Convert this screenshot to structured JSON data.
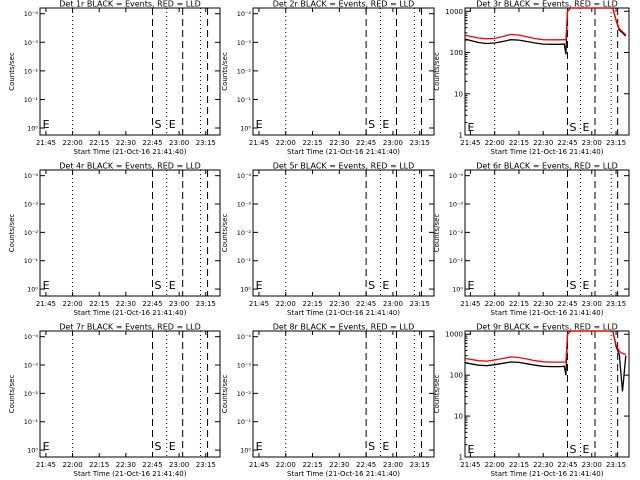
{
  "figure": {
    "xlabel": "Start Time (21-Oct-16 21:41:40)",
    "ylabel": "Counts/sec",
    "x_tick_labels": [
      "21:45",
      "22:00",
      "22:15",
      "22:30",
      "22:45",
      "23:00",
      "23:15"
    ],
    "flat_y_tick_labels": [
      "10⁻⁴",
      "10⁻³",
      "10⁻²",
      "10⁻¹",
      "10⁰"
    ],
    "log_y_tick_labels": [
      "1000",
      "100",
      "10",
      "1"
    ],
    "colors": {
      "events": "#000000",
      "lld": "#ff0000",
      "axes": "#000000",
      "background": "#ffffff"
    }
  },
  "chart_data": [
    {
      "type": "line",
      "title": "Det 1r BLACK = Events, RED = LLD",
      "x_range": [
        "21:41:40",
        "23:23:00"
      ],
      "y_scale": "log",
      "y_range": [
        0.8,
        10000
      ],
      "annotations": [
        {
          "text": "E",
          "x": "21:42"
        },
        {
          "text": "S",
          "x": "22:45"
        },
        {
          "text": "E",
          "x": "22:53"
        }
      ],
      "series": [
        {
          "values": []
        },
        {
          "values": []
        }
      ]
    },
    {
      "type": "line",
      "title": "Det 2r BLACK = Events, RED = LLD",
      "x_range": [
        "21:41:40",
        "23:23:00"
      ],
      "y_scale": "log",
      "y_range": [
        0.8,
        10000
      ],
      "annotations": [
        {
          "text": "E",
          "x": "21:42"
        },
        {
          "text": "S",
          "x": "22:45"
        },
        {
          "text": "E",
          "x": "22:53"
        }
      ],
      "series": [
        {
          "values": []
        },
        {
          "values": []
        }
      ]
    },
    {
      "type": "line",
      "title": "Det 3r BLACK = Events, RED = LLD",
      "x_range": [
        "21:41:40",
        "23:23:00"
      ],
      "y_scale": "log",
      "y_range": [
        1,
        1200
      ],
      "annotations": [
        {
          "text": "E",
          "x": "21:42"
        },
        {
          "text": "S",
          "x": "22:45"
        },
        {
          "text": "E",
          "x": "22:53"
        }
      ],
      "series": [
        {
          "values": [
            [
              "21:42",
              210
            ],
            [
              "21:50",
              175
            ],
            [
              "21:55",
              165
            ],
            [
              "22:00",
              170
            ],
            [
              "22:05",
              185
            ],
            [
              "22:10",
              205
            ],
            [
              "22:15",
              200
            ],
            [
              "22:20",
              185
            ],
            [
              "22:25",
              170
            ],
            [
              "22:30",
              160
            ],
            [
              "22:35",
              158
            ],
            [
              "22:40",
              158
            ],
            [
              "22:43",
              160
            ],
            [
              "22:44",
              90
            ],
            [
              "22:45",
              1000
            ],
            [
              "22:46",
              1100
            ],
            [
              "22:47",
              1200
            ],
            [
              "23:13",
              1200
            ],
            [
              "23:15",
              600
            ],
            [
              "23:17",
              350
            ],
            [
              "23:19",
              300
            ],
            [
              "23:21",
              250
            ]
          ]
        },
        {
          "values": [
            [
              "21:42",
              260
            ],
            [
              "21:50",
              225
            ],
            [
              "21:55",
              215
            ],
            [
              "22:00",
              220
            ],
            [
              "22:05",
              245
            ],
            [
              "22:10",
              275
            ],
            [
              "22:15",
              265
            ],
            [
              "22:20",
              240
            ],
            [
              "22:25",
              218
            ],
            [
              "22:30",
              205
            ],
            [
              "22:35",
              203
            ],
            [
              "22:40",
              203
            ],
            [
              "22:43",
              205
            ],
            [
              "22:44",
              205
            ],
            [
              "22:45",
              1000
            ],
            [
              "22:46",
              1100
            ],
            [
              "22:47",
              1200
            ],
            [
              "23:13",
              1200
            ],
            [
              "23:15",
              600
            ],
            [
              "23:17",
              380
            ],
            [
              "23:19",
              320
            ],
            [
              "23:21",
              270
            ]
          ]
        }
      ]
    },
    {
      "type": "line",
      "title": "Det 4r BLACK = Events, RED = LLD",
      "x_range": [
        "21:41:40",
        "23:23:00"
      ],
      "y_scale": "log",
      "y_range": [
        0.8,
        10000
      ],
      "annotations": [
        {
          "text": "E",
          "x": "21:42"
        },
        {
          "text": "S",
          "x": "22:45"
        },
        {
          "text": "E",
          "x": "22:53"
        }
      ],
      "series": [
        {
          "values": []
        },
        {
          "values": []
        }
      ]
    },
    {
      "type": "line",
      "title": "Det 5r BLACK = Events, RED = LLD",
      "x_range": [
        "21:41:40",
        "23:23:00"
      ],
      "y_scale": "log",
      "y_range": [
        0.8,
        10000
      ],
      "annotations": [
        {
          "text": "E",
          "x": "21:42"
        },
        {
          "text": "S",
          "x": "22:45"
        },
        {
          "text": "E",
          "x": "22:53"
        }
      ],
      "series": [
        {
          "values": []
        },
        {
          "values": []
        }
      ]
    },
    {
      "type": "line",
      "title": "Det 6r BLACK = Events, RED = LLD",
      "x_range": [
        "21:41:40",
        "23:23:00"
      ],
      "y_scale": "log",
      "y_range": [
        0.8,
        10000
      ],
      "annotations": [
        {
          "text": "E",
          "x": "21:42"
        },
        {
          "text": "S",
          "x": "22:45"
        },
        {
          "text": "E",
          "x": "22:53"
        }
      ],
      "series": [
        {
          "values": []
        },
        {
          "values": []
        }
      ]
    },
    {
      "type": "line",
      "title": "Det 7r BLACK = Events, RED = LLD",
      "x_range": [
        "21:41:40",
        "23:23:00"
      ],
      "y_scale": "log",
      "y_range": [
        0.8,
        10000
      ],
      "annotations": [
        {
          "text": "E",
          "x": "21:42"
        },
        {
          "text": "S",
          "x": "22:45"
        },
        {
          "text": "E",
          "x": "22:53"
        }
      ],
      "series": [
        {
          "values": []
        },
        {
          "values": []
        }
      ]
    },
    {
      "type": "line",
      "title": "Det 8r BLACK = Events, RED = LLD",
      "x_range": [
        "21:41:40",
        "23:23:00"
      ],
      "y_scale": "log",
      "y_range": [
        0.8,
        10000
      ],
      "annotations": [
        {
          "text": "E",
          "x": "21:42"
        },
        {
          "text": "S",
          "x": "22:45"
        },
        {
          "text": "E",
          "x": "22:53"
        }
      ],
      "series": [
        {
          "values": []
        },
        {
          "values": []
        }
      ]
    },
    {
      "type": "line",
      "title": "Det 9r BLACK = Events, RED = LLD",
      "x_range": [
        "21:41:40",
        "23:23:00"
      ],
      "y_scale": "log",
      "y_range": [
        1,
        1200
      ],
      "annotations": [
        {
          "text": "E",
          "x": "21:42"
        },
        {
          "text": "S",
          "x": "22:45"
        },
        {
          "text": "E",
          "x": "22:53"
        }
      ],
      "series": [
        {
          "values": [
            [
              "21:42",
              200
            ],
            [
              "21:50",
              175
            ],
            [
              "21:55",
              170
            ],
            [
              "22:00",
              180
            ],
            [
              "22:05",
              195
            ],
            [
              "22:10",
              210
            ],
            [
              "22:15",
              205
            ],
            [
              "22:20",
              190
            ],
            [
              "22:25",
              175
            ],
            [
              "22:30",
              165
            ],
            [
              "22:35",
              162
            ],
            [
              "22:40",
              162
            ],
            [
              "22:43",
              165
            ],
            [
              "22:44",
              100
            ],
            [
              "22:45",
              1000
            ],
            [
              "22:46",
              1100
            ],
            [
              "22:47",
              1200
            ],
            [
              "23:13",
              1200
            ],
            [
              "23:15",
              500
            ],
            [
              "23:17",
              320
            ],
            [
              "23:19",
              40
            ],
            [
              "23:21",
              300
            ]
          ]
        },
        {
          "values": [
            [
              "21:42",
              255
            ],
            [
              "21:50",
              225
            ],
            [
              "21:55",
              220
            ],
            [
              "22:00",
              235
            ],
            [
              "22:05",
              255
            ],
            [
              "22:10",
              280
            ],
            [
              "22:15",
              270
            ],
            [
              "22:20",
              248
            ],
            [
              "22:25",
              225
            ],
            [
              "22:30",
              212
            ],
            [
              "22:35",
              208
            ],
            [
              "22:40",
              208
            ],
            [
              "22:43",
              210
            ],
            [
              "22:44",
              210
            ],
            [
              "22:45",
              1000
            ],
            [
              "22:46",
              1100
            ],
            [
              "22:47",
              1200
            ],
            [
              "23:13",
              1200
            ],
            [
              "23:15",
              550
            ],
            [
              "23:17",
              380
            ],
            [
              "23:19",
              340
            ],
            [
              "23:21",
              320
            ]
          ]
        }
      ]
    }
  ]
}
